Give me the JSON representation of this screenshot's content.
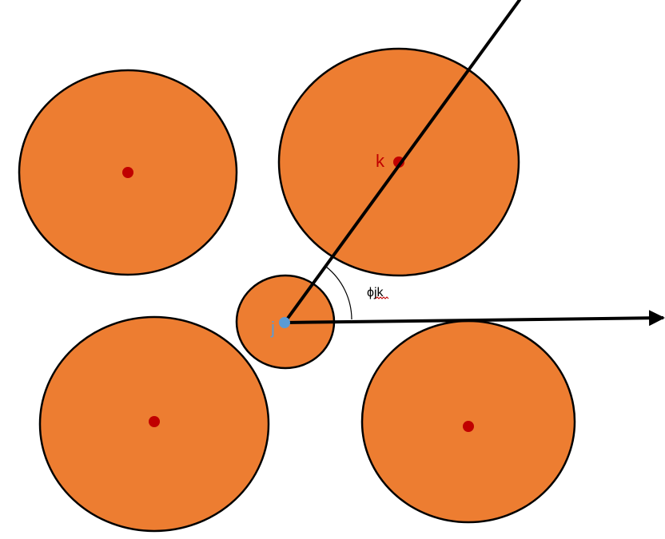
{
  "colors": {
    "particle_fill": "#ED7D31",
    "outline": "#000000",
    "center_dot": "#C00000",
    "center_j": "#5B9BD5",
    "label_j": "#5B9BD5",
    "label_k": "#C00000",
    "spellcheck_underline": "#C00000"
  },
  "labels": {
    "k": "k",
    "j": "j",
    "phi_symbol": "ϕ",
    "angle_subscript": "jk"
  }
}
